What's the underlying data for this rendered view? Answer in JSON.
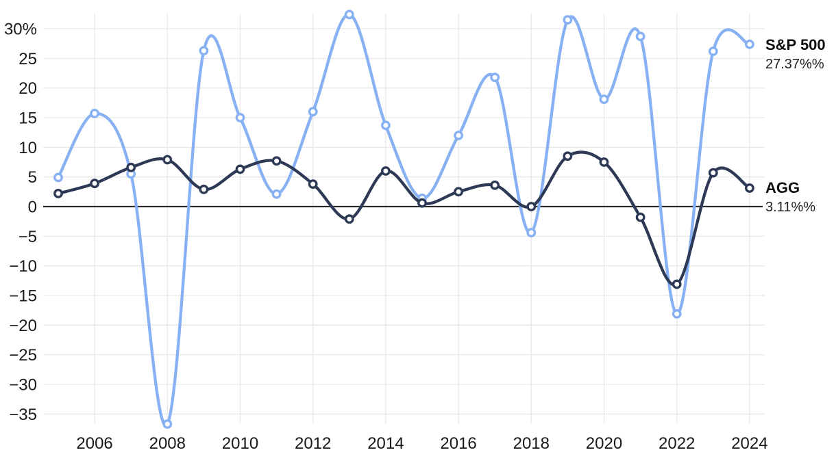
{
  "chart_data": {
    "type": "line",
    "title": "",
    "xlabel": "",
    "ylabel": "",
    "x": [
      2005,
      2006,
      2007,
      2008,
      2009,
      2010,
      2011,
      2012,
      2013,
      2014,
      2015,
      2016,
      2017,
      2018,
      2019,
      2020,
      2021,
      2022,
      2023,
      2024
    ],
    "x_tick_labels": [
      "2006",
      "2008",
      "2010",
      "2012",
      "2014",
      "2016",
      "2018",
      "2020",
      "2022",
      "2024"
    ],
    "y_ticks": [
      {
        "value": 30,
        "label": "30%"
      },
      {
        "value": 25,
        "label": "25"
      },
      {
        "value": 20,
        "label": "20"
      },
      {
        "value": 15,
        "label": "15"
      },
      {
        "value": 10,
        "label": "10"
      },
      {
        "value": 5,
        "label": "5"
      },
      {
        "value": 0,
        "label": "0"
      },
      {
        "value": -5,
        "label": "−5"
      },
      {
        "value": -10,
        "label": "−10"
      },
      {
        "value": -15,
        "label": "−15"
      },
      {
        "value": -20,
        "label": "−20"
      },
      {
        "value": -25,
        "label": "−25"
      },
      {
        "value": -30,
        "label": "−30"
      },
      {
        "value": -35,
        "label": "−35"
      }
    ],
    "ylim": [
      -38.5,
      33.5
    ],
    "grid": true,
    "zero_line": true,
    "legend_position": "right-of-last-point",
    "series": [
      {
        "name": "S&P 500",
        "color": "#87b1f3",
        "end_label": "S&P 500",
        "end_value_label": "27.37%%",
        "values": [
          4.9,
          15.7,
          5.5,
          -36.7,
          26.3,
          15.0,
          2.1,
          16.0,
          32.4,
          13.7,
          1.4,
          12.0,
          21.8,
          -4.4,
          31.5,
          18.1,
          28.7,
          -18.1,
          26.2,
          27.37
        ]
      },
      {
        "name": "AGG",
        "color": "#2e3a55",
        "end_label": "AGG",
        "end_value_label": "3.11%%",
        "values": [
          2.2,
          3.9,
          6.6,
          7.9,
          2.9,
          6.3,
          7.7,
          3.8,
          -2.1,
          6.0,
          0.6,
          2.5,
          3.6,
          0.0,
          8.5,
          7.5,
          -1.8,
          -13.1,
          5.7,
          3.11
        ]
      }
    ]
  },
  "legend": {
    "sp500": {
      "name": "S&P 500",
      "value": "27.37%%"
    },
    "agg": {
      "name": "AGG",
      "value": "3.11%%"
    }
  },
  "colors": {
    "sp500": "#87b1f3",
    "agg": "#2e3a55",
    "grid": "#e7e7e7",
    "zero_line": "#2b2b2b",
    "tick_text": "#1a1a1a",
    "marker_core": "#ffffff",
    "background": "#ffffff"
  }
}
